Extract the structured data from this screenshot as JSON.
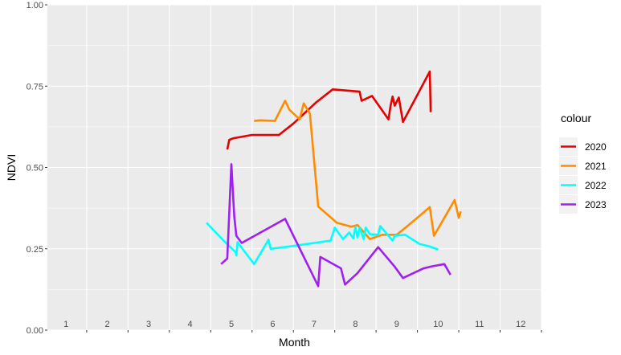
{
  "chart_data": {
    "type": "line",
    "title": "",
    "xlabel": "Month",
    "ylabel": "NDVI",
    "xlim": [
      0.55,
      12.5
    ],
    "ylim": [
      0,
      1
    ],
    "x_tick_labels": [
      "1",
      "2",
      "3",
      "4",
      "5",
      "6",
      "7",
      "8",
      "9",
      "10",
      "11",
      "12"
    ],
    "x_tick_positions": [
      1,
      2,
      3,
      4,
      5,
      6,
      7,
      8,
      9,
      10,
      11,
      12
    ],
    "y_ticks": [
      0,
      0.25,
      0.5,
      0.75,
      1
    ],
    "y_tick_labels": [
      "0.00",
      "0.25",
      "0.50",
      "0.75",
      "1.00"
    ],
    "grid": true,
    "legend_title": "colour",
    "legend_position": "right",
    "series": [
      {
        "name": "2020",
        "color": "#e60000",
        "points": [
          [
            4.9,
            0.555
          ],
          [
            4.95,
            0.585
          ],
          [
            5.05,
            0.59
          ],
          [
            5.5,
            0.6
          ],
          [
            6.15,
            0.6
          ],
          [
            6.5,
            0.635
          ],
          [
            7.05,
            0.7
          ],
          [
            7.45,
            0.74
          ],
          [
            8.1,
            0.733
          ],
          [
            8.15,
            0.705
          ],
          [
            8.4,
            0.72
          ],
          [
            8.8,
            0.648
          ],
          [
            8.85,
            0.69
          ],
          [
            8.9,
            0.718
          ],
          [
            8.95,
            0.69
          ],
          [
            9.05,
            0.715
          ],
          [
            9.15,
            0.64
          ],
          [
            9.8,
            0.795
          ],
          [
            9.82,
            0.67
          ]
        ]
      },
      {
        "name": "2021",
        "color": "#ff8c00",
        "points": [
          [
            5.55,
            0.643
          ],
          [
            5.7,
            0.645
          ],
          [
            6.05,
            0.643
          ],
          [
            6.3,
            0.705
          ],
          [
            6.4,
            0.678
          ],
          [
            6.65,
            0.648
          ],
          [
            6.75,
            0.697
          ],
          [
            6.9,
            0.665
          ],
          [
            7.1,
            0.38
          ],
          [
            7.55,
            0.33
          ],
          [
            7.9,
            0.318
          ],
          [
            8.05,
            0.323
          ],
          [
            8.35,
            0.28
          ],
          [
            8.65,
            0.293
          ],
          [
            9.0,
            0.293
          ],
          [
            9.45,
            0.34
          ],
          [
            9.8,
            0.378
          ],
          [
            9.9,
            0.29
          ],
          [
            10.4,
            0.4
          ],
          [
            10.5,
            0.345
          ],
          [
            10.55,
            0.365
          ]
        ]
      },
      {
        "name": "2022",
        "color": "#00ffff",
        "points": [
          [
            4.4,
            0.33
          ],
          [
            4.85,
            0.27
          ],
          [
            5.1,
            0.24
          ],
          [
            5.12,
            0.23
          ],
          [
            5.15,
            0.27
          ],
          [
            5.55,
            0.203
          ],
          [
            5.9,
            0.278
          ],
          [
            5.95,
            0.25
          ],
          [
            6.45,
            0.258
          ],
          [
            7.4,
            0.275
          ],
          [
            7.5,
            0.315
          ],
          [
            7.7,
            0.28
          ],
          [
            7.85,
            0.3
          ],
          [
            7.95,
            0.282
          ],
          [
            8.0,
            0.318
          ],
          [
            8.05,
            0.285
          ],
          [
            8.1,
            0.315
          ],
          [
            8.2,
            0.28
          ],
          [
            8.25,
            0.315
          ],
          [
            8.35,
            0.295
          ],
          [
            8.55,
            0.293
          ],
          [
            8.6,
            0.32
          ],
          [
            8.9,
            0.275
          ],
          [
            8.95,
            0.29
          ],
          [
            9.2,
            0.293
          ],
          [
            9.55,
            0.265
          ],
          [
            9.8,
            0.257
          ],
          [
            10.0,
            0.248
          ]
        ]
      },
      {
        "name": "2023",
        "color": "#a020f0",
        "points": [
          [
            4.75,
            0.203
          ],
          [
            4.9,
            0.22
          ],
          [
            5.0,
            0.51
          ],
          [
            5.07,
            0.35
          ],
          [
            5.12,
            0.29
          ],
          [
            5.25,
            0.268
          ],
          [
            6.3,
            0.342
          ],
          [
            7.1,
            0.135
          ],
          [
            7.15,
            0.225
          ],
          [
            7.65,
            0.19
          ],
          [
            7.75,
            0.14
          ],
          [
            8.05,
            0.175
          ],
          [
            8.3,
            0.215
          ],
          [
            8.55,
            0.255
          ],
          [
            8.95,
            0.195
          ],
          [
            9.15,
            0.16
          ],
          [
            9.65,
            0.19
          ],
          [
            9.85,
            0.196
          ],
          [
            10.15,
            0.203
          ],
          [
            10.3,
            0.17
          ]
        ]
      }
    ]
  }
}
